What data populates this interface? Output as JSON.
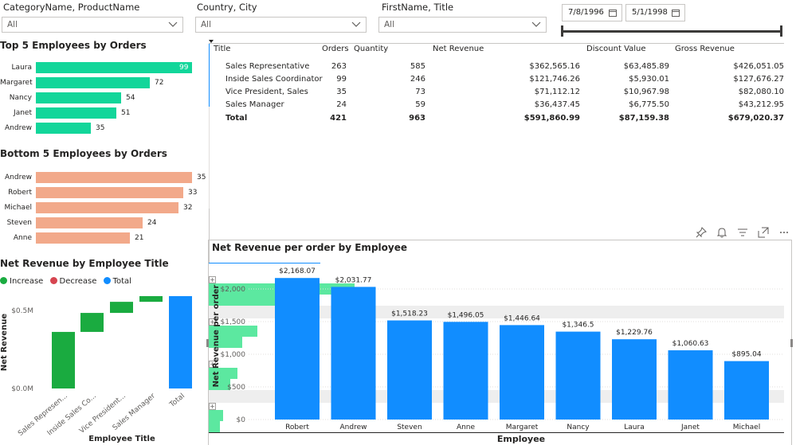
{
  "slicers": [
    {
      "title": "CategoryName, ProductName",
      "value": "All"
    },
    {
      "title": "Country, City",
      "value": "All"
    },
    {
      "title": "FirstName, Title",
      "value": "All"
    }
  ],
  "date_range": {
    "start": "7/8/1996",
    "end": "5/1/1998"
  },
  "top5": {
    "title": "Top 5 Employees by Orders",
    "color": "#12d69a",
    "chart_data": {
      "type": "bar",
      "categories": [
        "Laura",
        "Margaret",
        "Nancy",
        "Janet",
        "Andrew"
      ],
      "values": [
        99,
        72,
        54,
        51,
        35
      ]
    }
  },
  "bottom5": {
    "title": "Bottom 5 Employees by Orders",
    "color": "#f2a98a",
    "chart_data": {
      "type": "bar",
      "categories": [
        "Andrew",
        "Robert",
        "Michael",
        "Steven",
        "Anne"
      ],
      "values": [
        35,
        33,
        32,
        24,
        21
      ]
    }
  },
  "matrix": {
    "headers": [
      "Title",
      "Orders",
      "Quantity",
      "Net Revenue",
      "Discount Value",
      "Gross Revenue"
    ],
    "rows": [
      {
        "title": "Sales Representative",
        "orders": "263",
        "quantity": "585",
        "net": "$362,565.16",
        "discount": "$63,485.89",
        "gross": "$426,051.05",
        "net_frac": 1.0,
        "gross_frac": 1.0
      },
      {
        "title": "Inside Sales Coordinator",
        "orders": "99",
        "quantity": "246",
        "net": "$121,746.26",
        "discount": "$5,930.01",
        "gross": "$127,676.27",
        "net_frac": 0.336,
        "gross_frac": 0.3
      },
      {
        "title": "Vice President, Sales",
        "orders": "35",
        "quantity": "73",
        "net": "$71,112.12",
        "discount": "$10,967.98",
        "gross": "$82,080.10",
        "net_frac": 0.196,
        "gross_frac": 0.193
      },
      {
        "title": "Sales Manager",
        "orders": "24",
        "quantity": "59",
        "net": "$36,437.45",
        "discount": "$6,775.50",
        "gross": "$43,212.95",
        "net_frac": 0.1,
        "gross_frac": 0.101
      }
    ],
    "total": {
      "title": "Total",
      "orders": "421",
      "quantity": "963",
      "net": "$591,860.99",
      "discount": "$87,159.38",
      "gross": "$679,020.37"
    },
    "bar_color": "#5ce8a0",
    "bar_color_light": "#9af0c4"
  },
  "waterfall": {
    "title": "Net Revenue by Employee Title",
    "legend": [
      {
        "label": "Increase",
        "color": "#1aab40"
      },
      {
        "label": "Decrease",
        "color": "#d64550"
      },
      {
        "label": "Total",
        "color": "#118dff"
      }
    ],
    "ylabel": "Net Revenue",
    "xlabel": "Employee Title",
    "yticks": [
      "$0.5M",
      "$0.0M"
    ],
    "categories": [
      "Sales Represen...",
      "Inside Sales Co...",
      "Vice President...",
      "Sales Manager",
      "Total"
    ],
    "chart_data": {
      "type": "bar",
      "categories": [
        "Sales Representative",
        "Inside Sales Coordinator",
        "Vice President, Sales",
        "Sales Manager",
        "Total"
      ],
      "values": [
        362565.16,
        121746.26,
        71112.12,
        36437.45,
        591860.99
      ],
      "kinds": [
        "increase",
        "increase",
        "increase",
        "increase",
        "total"
      ],
      "ylim": [
        0,
        650000
      ]
    }
  },
  "netrev": {
    "title": "Net Revenue per order by Employee",
    "color": "#118dff",
    "ylabel": "Net Revenue per order",
    "xlabel": "Employee",
    "chart_data": {
      "type": "bar",
      "categories": [
        "Robert",
        "Andrew",
        "Steven",
        "Anne",
        "Margaret",
        "Nancy",
        "Laura",
        "Janet",
        "Michael"
      ],
      "values": [
        2168.07,
        2031.77,
        1518.23,
        1496.05,
        1446.64,
        1346.5,
        1229.76,
        1060.63,
        895.04
      ],
      "labels": [
        "$2,168.07",
        "$2,031.77",
        "$1,518.23",
        "$1,496.05",
        "$1,446.64",
        "$1,346.5",
        "$1,229.76",
        "$1,060.63",
        "$895.04"
      ],
      "yticks": [
        "$0",
        "$500",
        "$1,000",
        "$1,500",
        "$2,000"
      ],
      "ytick_values": [
        0,
        500,
        1000,
        1500,
        2000
      ],
      "ylim": [
        0,
        2200
      ]
    }
  },
  "visual_toolbar": [
    "pin-icon",
    "bell-icon",
    "filter-icon",
    "focus-mode-icon",
    "more-options-icon"
  ]
}
